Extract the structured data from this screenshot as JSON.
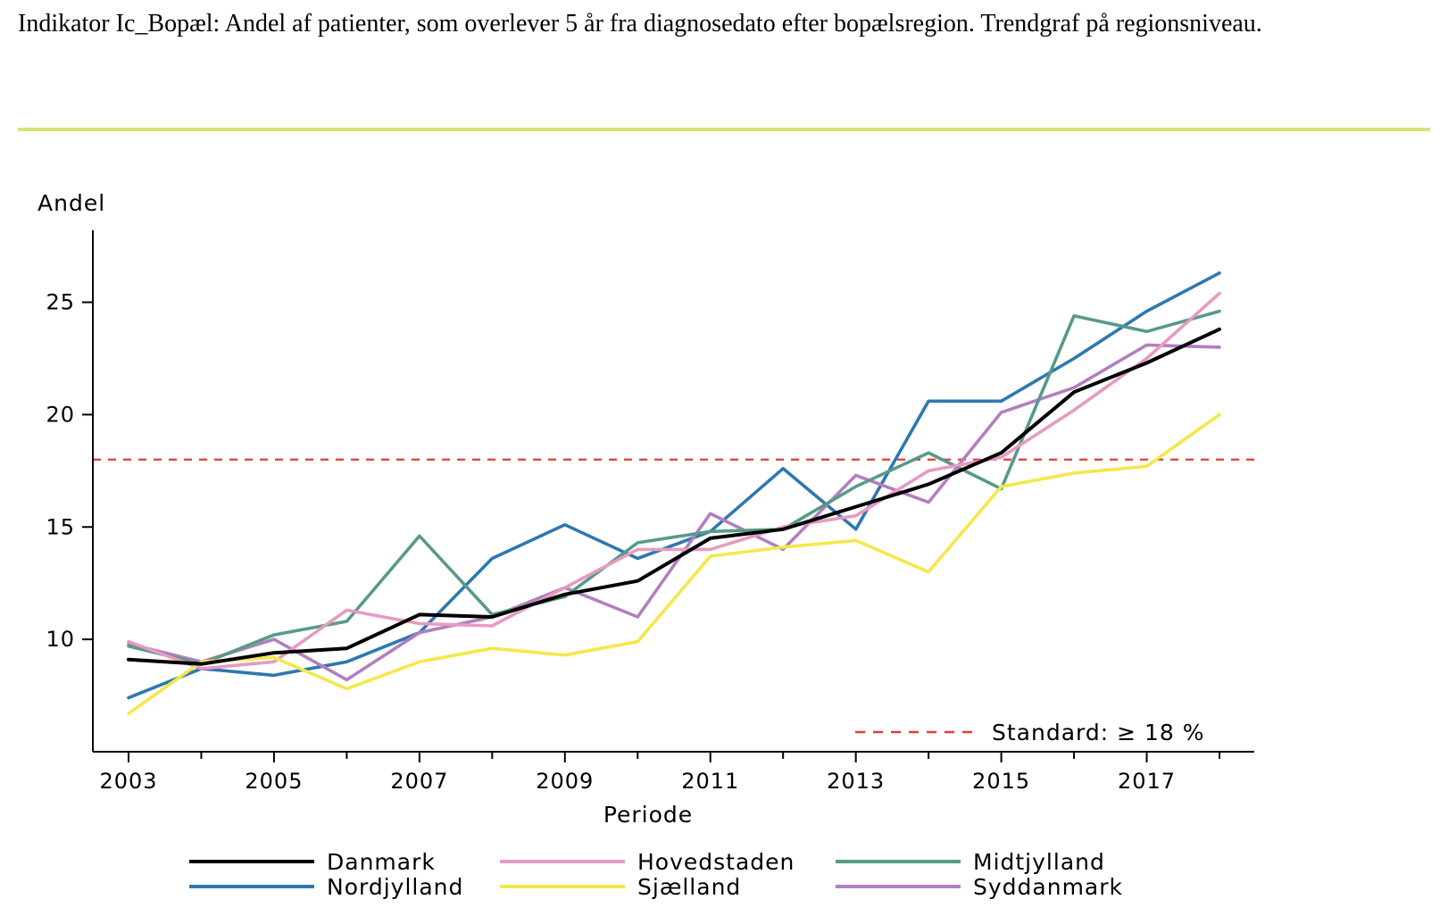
{
  "document": {
    "title": "Indikator Ic_Bopæl: Andel af patienter, som overlever 5 år fra diagnosedato efter bopælsregion. Trendgraf på regionsniveau.",
    "rule_color": "#d9e27a"
  },
  "chart_data": {
    "type": "line",
    "title": "",
    "xlabel": "Periode",
    "ylabel": "Andel",
    "xlim": [
      2002.5,
      2018.5
    ],
    "ylim": [
      5,
      28.2
    ],
    "x_ticks": [
      2003,
      2005,
      2007,
      2009,
      2011,
      2013,
      2015,
      2017
    ],
    "x_minor_ticks": [
      2004,
      2006,
      2008,
      2010,
      2012,
      2014,
      2016,
      2018
    ],
    "y_ticks": [
      10,
      15,
      20,
      25
    ],
    "grid": false,
    "legend_position": "bottom",
    "x": [
      2003,
      2004,
      2005,
      2006,
      2007,
      2008,
      2009,
      2010,
      2011,
      2012,
      2013,
      2014,
      2015,
      2016,
      2017,
      2018
    ],
    "series": [
      {
        "name": "Danmark",
        "color": "#000000",
        "values": [
          9.1,
          8.9,
          9.4,
          9.6,
          11.1,
          11.0,
          12.0,
          12.6,
          14.5,
          14.9,
          15.9,
          16.9,
          18.3,
          21.0,
          22.3,
          23.8
        ]
      },
      {
        "name": "Hovedstaden",
        "color": "#e79ac2",
        "values": [
          9.9,
          8.7,
          9.0,
          11.3,
          10.7,
          10.6,
          12.3,
          14.0,
          14.0,
          15.0,
          15.5,
          17.5,
          18.1,
          20.2,
          22.5,
          25.4
        ]
      },
      {
        "name": "Midtjylland",
        "color": "#579a87",
        "values": [
          9.7,
          8.9,
          10.2,
          10.8,
          14.6,
          11.1,
          11.9,
          14.3,
          14.8,
          14.9,
          16.8,
          18.3,
          16.7,
          24.4,
          23.7,
          24.6
        ]
      },
      {
        "name": "Nordjylland",
        "color": "#2e78b0",
        "values": [
          7.4,
          8.7,
          8.4,
          9.0,
          10.3,
          13.6,
          15.1,
          13.6,
          14.8,
          17.6,
          14.9,
          20.6,
          20.6,
          22.5,
          24.6,
          26.3
        ]
      },
      {
        "name": "Sjælland",
        "color": "#f4e84a",
        "values": [
          6.7,
          9.0,
          9.2,
          7.8,
          9.0,
          9.6,
          9.3,
          9.9,
          13.7,
          14.1,
          14.4,
          13.0,
          16.8,
          17.4,
          17.7,
          20.0
        ]
      },
      {
        "name": "Syddanmark",
        "color": "#b27fbf",
        "values": [
          9.8,
          9.0,
          10.0,
          8.2,
          10.3,
          11.0,
          12.3,
          11.0,
          15.6,
          14.0,
          17.3,
          16.1,
          20.1,
          21.2,
          23.1,
          23.0
        ]
      }
    ],
    "reference_line": {
      "value": 18,
      "color": "#e8383a",
      "label": "Standard: ≥ 18 %"
    }
  }
}
